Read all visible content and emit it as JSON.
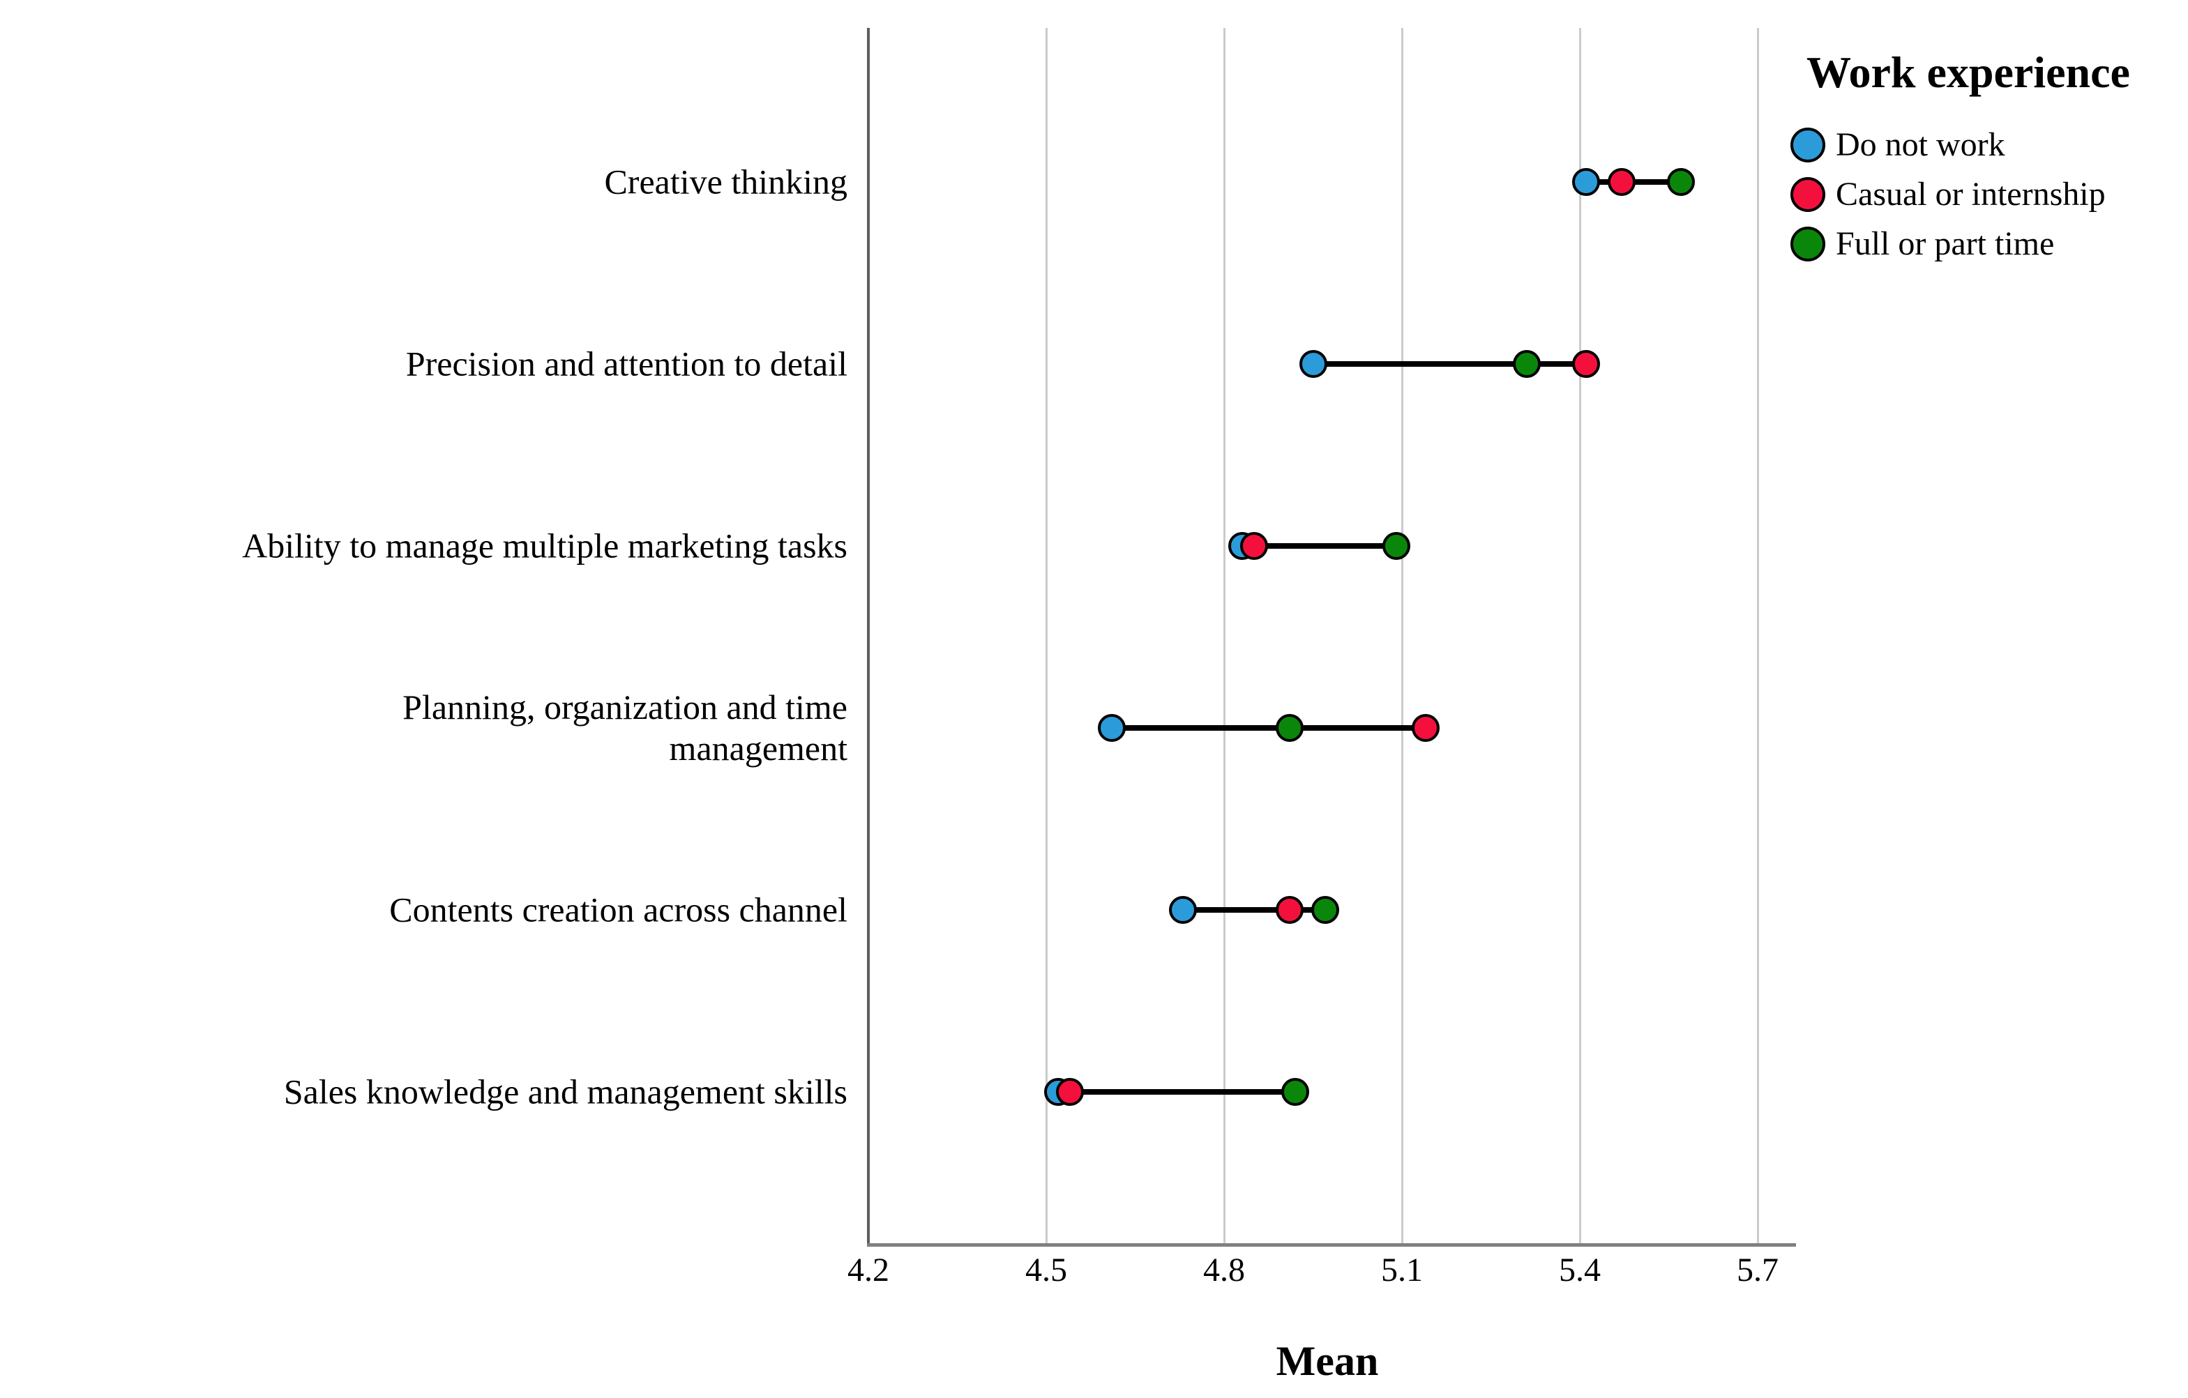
{
  "chart_data": {
    "type": "scatter",
    "variant": "dumbbell-dot-plot",
    "title": "",
    "xlabel": "Mean",
    "ylabel": "",
    "x_ticks": [
      4.2,
      4.5,
      4.8,
      5.1,
      5.4,
      5.7
    ],
    "xlim": [
      4.2,
      5.76
    ],
    "grid": "vertical-only",
    "legend": {
      "title": "Work experience",
      "position": "top-right"
    },
    "categories": [
      "Creative thinking",
      "Precision and attention to detail",
      "Ability to manage multiple marketing tasks",
      "Planning, organization and time\nmanagement",
      "Contents creation across channel",
      "Sales knowledge and management skills"
    ],
    "series": [
      {
        "name": "Do not work",
        "color": "#2B9CD9",
        "values": [
          5.41,
          4.95,
          4.83,
          4.61,
          4.73,
          4.52
        ]
      },
      {
        "name": "Casual or internship",
        "color": "#F4103D",
        "values": [
          5.47,
          5.41,
          4.85,
          5.14,
          4.91,
          4.54
        ]
      },
      {
        "name": "Full or part time",
        "color": "#0A870A",
        "values": [
          5.57,
          5.31,
          5.09,
          4.91,
          4.97,
          4.92
        ]
      }
    ]
  },
  "colors": {
    "gridline": "#CBCBCB",
    "y_axis": "#5E5E5E",
    "x_axis": "#808080",
    "connector": "#000000",
    "text": "#000000",
    "background": "#FFFFFF"
  }
}
